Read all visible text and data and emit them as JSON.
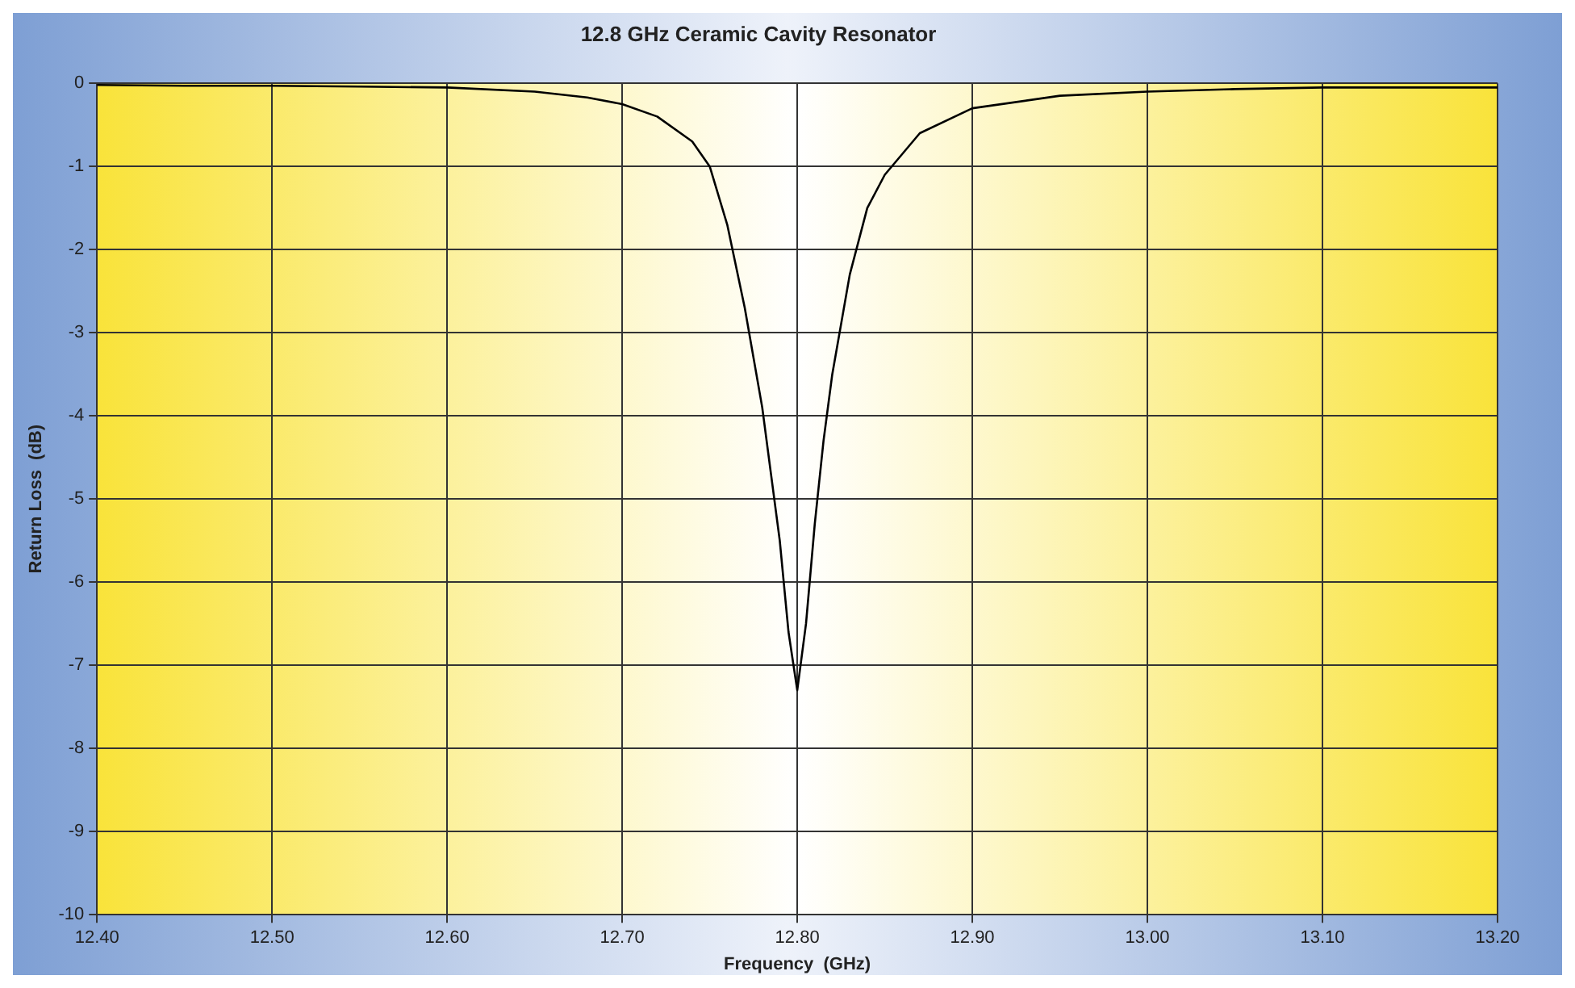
{
  "chart_data": {
    "type": "line",
    "title": "12.8 GHz Ceramic Cavity Resonator",
    "xlabel": "Frequency  (GHz)",
    "ylabel": "Return Loss  (dB)",
    "x": [
      12.4,
      12.45,
      12.5,
      12.55,
      12.6,
      12.65,
      12.68,
      12.7,
      12.72,
      12.74,
      12.75,
      12.76,
      12.77,
      12.78,
      12.785,
      12.79,
      12.795,
      12.8,
      12.805,
      12.81,
      12.815,
      12.82,
      12.83,
      12.84,
      12.85,
      12.87,
      12.9,
      12.95,
      13.0,
      13.05,
      13.1,
      13.15,
      13.2
    ],
    "series": [
      {
        "color": "#000000",
        "values": [
          -0.02,
          -0.03,
          -0.03,
          -0.04,
          -0.05,
          -0.1,
          -0.17,
          -0.25,
          -0.4,
          -0.7,
          -1.0,
          -1.7,
          -2.7,
          -3.9,
          -4.7,
          -5.5,
          -6.6,
          -7.3,
          -6.5,
          -5.3,
          -4.3,
          -3.5,
          -2.3,
          -1.5,
          -1.1,
          -0.6,
          -0.3,
          -0.15,
          -0.1,
          -0.07,
          -0.05,
          -0.05,
          -0.05
        ]
      }
    ],
    "xlim": [
      12.4,
      13.2
    ],
    "xticks": [
      {
        "value": 12.4,
        "label": "12.40"
      },
      {
        "value": 12.5,
        "label": "12.50"
      },
      {
        "value": 12.6,
        "label": "12.60"
      },
      {
        "value": 12.7,
        "label": "12.70"
      },
      {
        "value": 12.8,
        "label": "12.80"
      },
      {
        "value": 12.9,
        "label": "12.90"
      },
      {
        "value": 13.0,
        "label": "13.00"
      },
      {
        "value": 13.1,
        "label": "13.10"
      },
      {
        "value": 13.2,
        "label": "13.20"
      }
    ],
    "ylim": [
      -10,
      0
    ],
    "yticks": [
      -10,
      -9,
      -8,
      -7,
      -6,
      -5,
      -4,
      -3,
      -2,
      -1,
      0
    ],
    "grid": true,
    "legend": false,
    "marker": "none",
    "line_style": "solid"
  }
}
